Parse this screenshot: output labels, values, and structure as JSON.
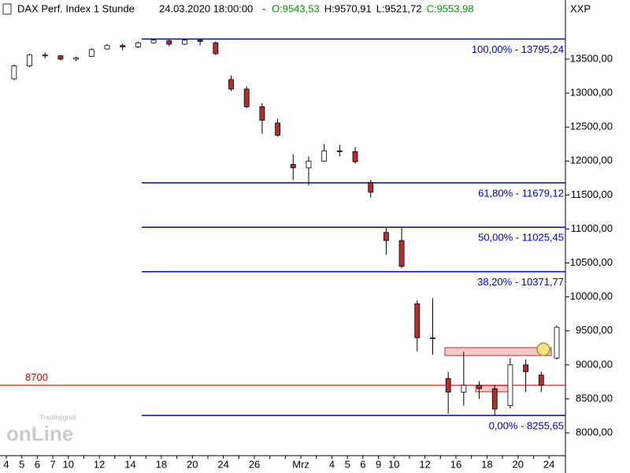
{
  "chart_data": {
    "type": "candlestick",
    "title": "DAX Perf. Index 1 Stunde",
    "datetime": "24.03.2020 18:00:00",
    "separator": "-",
    "ohlc_labels": [
      {
        "text": "O:9543,53",
        "color": "#009900"
      },
      {
        "text": "H:9570,91",
        "color": "#000000"
      },
      {
        "text": "L:9521,72",
        "color": "#000000"
      },
      {
        "text": "C:9553,98",
        "color": "#009900"
      }
    ],
    "axis_label": "XXP",
    "watermark": "onLine",
    "watermark_brand": "Tradesignal",
    "categories": [
      "4",
      "5",
      "6",
      "7",
      "10",
      null,
      "12",
      null,
      "14",
      null,
      "18",
      null,
      "20",
      null,
      "24",
      null,
      "26",
      null,
      null,
      "Mrz",
      null,
      "4",
      "5",
      "6",
      "9",
      "10",
      null,
      "12",
      null,
      "16",
      null,
      "18",
      null,
      "20",
      null,
      "24"
    ],
    "open": [
      13210,
      13400,
      13560,
      13550,
      13500,
      13540,
      13650,
      13700,
      13680,
      13740,
      13770,
      13720,
      13780,
      13740,
      13200,
      13060,
      12800,
      12560,
      11950,
      11900,
      12000,
      12150,
      12140,
      11680,
      10950,
      10830,
      9900,
      9400,
      8800,
      8600,
      8700,
      8650,
      8400,
      9000,
      8850,
      9100
    ],
    "high": [
      13420,
      13580,
      13600,
      13560,
      13540,
      13660,
      13720,
      13730,
      13760,
      13790,
      13790,
      13795,
      13790,
      13760,
      13260,
      13100,
      12850,
      12620,
      12100,
      12070,
      12250,
      12240,
      12210,
      11720,
      11030,
      11020,
      9950,
      9980,
      8900,
      9190,
      8760,
      8700,
      9100,
      9080,
      8900,
      9580
    ],
    "low": [
      13190,
      13380,
      13510,
      13480,
      13470,
      13530,
      13640,
      13630,
      13660,
      13730,
      13690,
      13710,
      13700,
      13560,
      13030,
      12780,
      12400,
      12360,
      11720,
      11640,
      11990,
      12070,
      11960,
      11460,
      10620,
      10420,
      9200,
      9150,
      8280,
      8400,
      8500,
      8260,
      8360,
      8600,
      8600,
      9080
    ],
    "close": [
      13400,
      13560,
      13550,
      13500,
      13520,
      13640,
      13700,
      13680,
      13740,
      13780,
      13720,
      13780,
      13760,
      13580,
      13060,
      12800,
      12600,
      12380,
      11900,
      12000,
      12150,
      12140,
      11990,
      11540,
      10830,
      10450,
      9400,
      9400,
      8600,
      8700,
      8650,
      8350,
      9000,
      8900,
      8700,
      9553.98
    ],
    "up_color": "#ffffff",
    "down_color": "#b03030",
    "ylim": [
      7664,
      14370
    ],
    "yticks": [
      {
        "value": 8000,
        "label": "8000,00"
      },
      {
        "value": 8500,
        "label": "8500,00"
      },
      {
        "value": 9000,
        "label": "9000,00"
      },
      {
        "value": 9500,
        "label": "9500,00"
      },
      {
        "value": 10000,
        "label": "10000,00"
      },
      {
        "value": 10500,
        "label": "10500,00"
      },
      {
        "value": 11000,
        "label": "11000,00"
      },
      {
        "value": 11500,
        "label": "11500,00"
      },
      {
        "value": 12000,
        "label": "12000,00"
      },
      {
        "value": 12500,
        "label": "12500,00"
      },
      {
        "value": 13000,
        "label": "13000,00"
      },
      {
        "value": 13500,
        "label": "13500,00"
      }
    ],
    "fib_levels": [
      {
        "value": 13795.24,
        "label": "100,00% - 13795,24"
      },
      {
        "value": 11679.12,
        "label": "61,80% - 11679,12"
      },
      {
        "value": 11025.45,
        "label": "50,00% - 11025,45"
      },
      {
        "value": 10371.77,
        "label": "38,20% - 10371,77"
      },
      {
        "value": 8255.65,
        "label": "0,00% - 8255,65"
      }
    ],
    "fib_color": "#0000cc",
    "support_line": {
      "value": 8700,
      "label": "8700",
      "color": "#cc0000"
    }
  }
}
